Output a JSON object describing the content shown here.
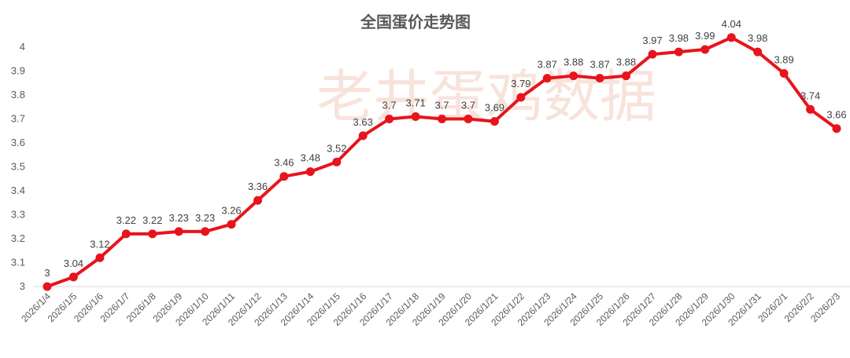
{
  "chart_data": {
    "type": "line",
    "title": "全国蛋价走势图",
    "watermark": "老井蛋鸡数据",
    "xlabel": "",
    "ylabel": "",
    "categories": [
      "2026/1/4",
      "2026/1/5",
      "2026/1/6",
      "2026/1/7",
      "2026/1/8",
      "2026/1/9",
      "2026/1/10",
      "2026/1/11",
      "2026/1/12",
      "2026/1/13",
      "2026/1/14",
      "2026/1/15",
      "2026/1/16",
      "2026/1/17",
      "2026/1/18",
      "2026/1/19",
      "2026/1/20",
      "2026/1/21",
      "2026/1/22",
      "2026/1/23",
      "2026/1/24",
      "2026/1/25",
      "2026/1/26",
      "2026/1/27",
      "2026/1/28",
      "2026/1/29",
      "2026/1/30",
      "2026/1/31",
      "2026/2/1",
      "2026/2/2",
      "2026/2/3"
    ],
    "series": [
      {
        "values": [
          3,
          3.04,
          3.12,
          3.22,
          3.22,
          3.23,
          3.23,
          3.26,
          3.36,
          3.46,
          3.48,
          3.52,
          3.63,
          3.7,
          3.71,
          3.7,
          3.7,
          3.69,
          3.79,
          3.87,
          3.88,
          3.87,
          3.88,
          3.97,
          3.98,
          3.99,
          4.04,
          3.98,
          3.89,
          3.74,
          3.66
        ]
      }
    ],
    "data_labels": [
      "3",
      "3.04",
      "3.12",
      "3.22",
      "3.22",
      "3.23",
      "3.23",
      "3.26",
      "3.36",
      "3.46",
      "3.48",
      "3.52",
      "3.63",
      "3.7",
      "3.71",
      "3.7",
      "3.7",
      "3.69",
      "3.79",
      "3.87",
      "3.88",
      "3.87",
      "3.88",
      "3.97",
      "3.98",
      "3.99",
      "4.04",
      "3.98",
      "3.89",
      "3.74",
      "3.66"
    ],
    "ylim": [
      3,
      4
    ],
    "yticks": [
      3,
      3.1,
      3.2,
      3.3,
      3.4,
      3.5,
      3.6,
      3.7,
      3.8,
      3.9,
      4
    ],
    "ytick_labels": [
      "3",
      "3.1",
      "3.2",
      "3.3",
      "3.4",
      "3.5",
      "3.6",
      "3.7",
      "3.8",
      "3.9",
      "4"
    ],
    "grid": false,
    "legend": "none",
    "colors": {
      "line": "#e8141c",
      "marker": "#e8141c",
      "axis": "#d9d9d9"
    }
  }
}
